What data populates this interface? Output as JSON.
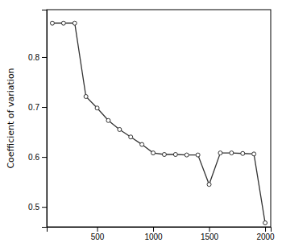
{
  "chart_data": {
    "type": "line",
    "x": [
      100,
      200,
      300,
      400,
      500,
      600,
      700,
      800,
      900,
      1000,
      1100,
      1200,
      1300,
      1400,
      1500,
      1600,
      1700,
      1800,
      1900,
      2000
    ],
    "values": [
      0.868,
      0.868,
      0.868,
      0.721,
      0.698,
      0.673,
      0.655,
      0.64,
      0.625,
      0.608,
      0.605,
      0.605,
      0.604,
      0.604,
      0.545,
      0.608,
      0.608,
      0.607,
      0.606,
      0.468
    ],
    "ylabel": "Coefficient of variation",
    "xlim": [
      50,
      2050
    ],
    "ylim": [
      0.46,
      0.895
    ],
    "xticks": [
      500,
      1000,
      1500,
      2000
    ],
    "yticks": [
      0.5,
      0.6,
      0.7,
      0.8
    ],
    "color": "#333333",
    "marker": "circle"
  }
}
